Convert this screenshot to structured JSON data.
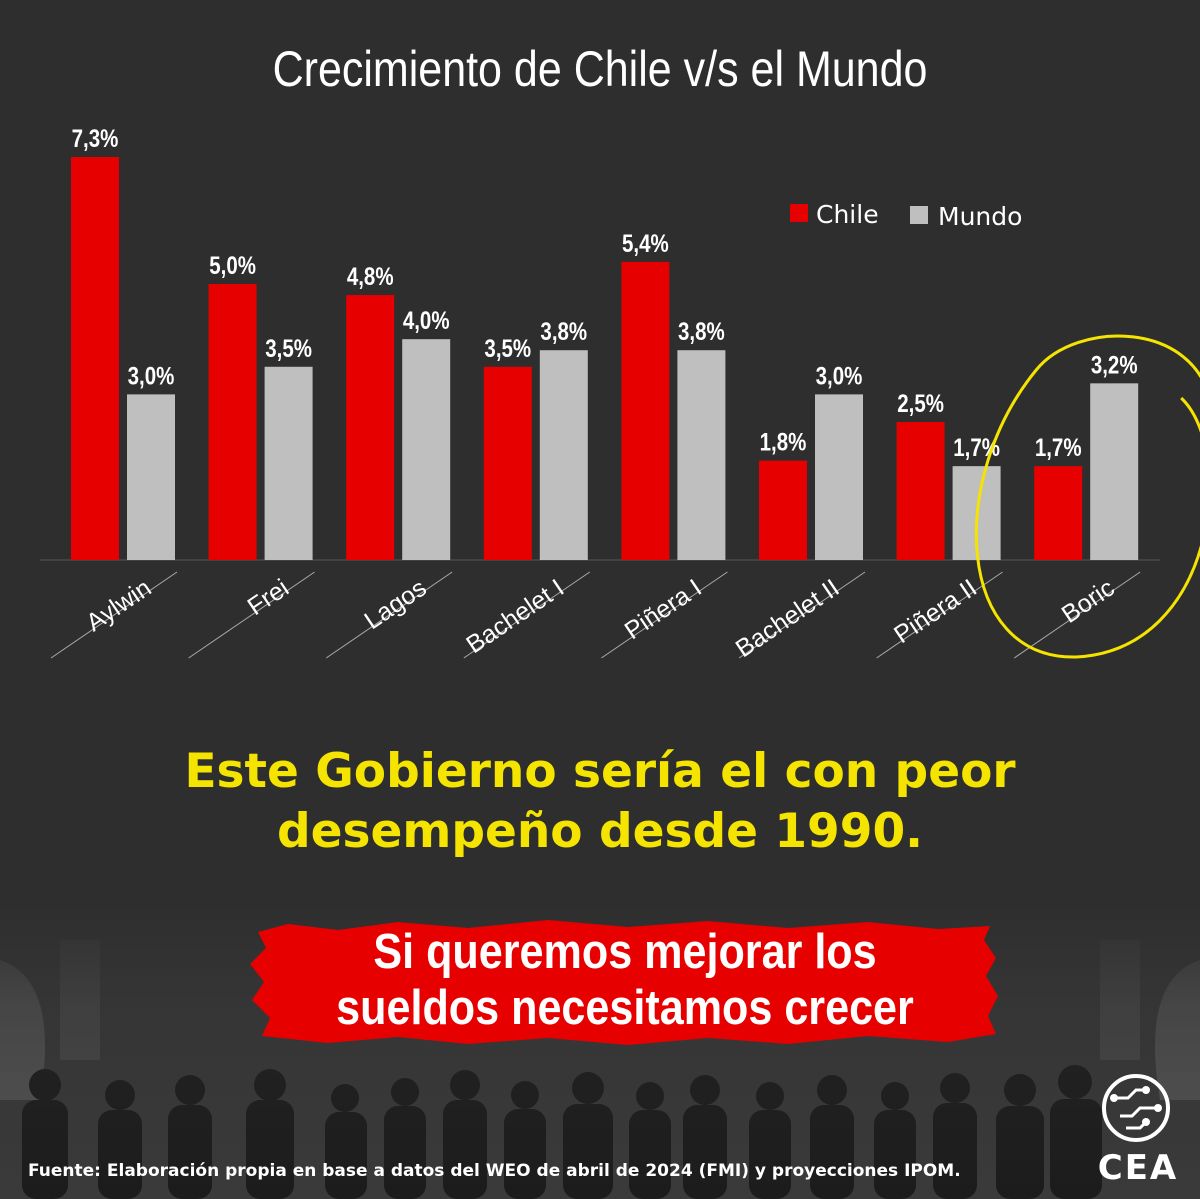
{
  "chart_data": {
    "type": "bar",
    "title": "Crecimiento de Chile v/s el Mundo",
    "categories": [
      "Aylwin",
      "Frei",
      "Lagos",
      "Bachelet I",
      "Piñera I",
      "Bachelet II",
      "Piñera II",
      "Boric"
    ],
    "series": [
      {
        "name": "Chile",
        "color": "#e60000",
        "values": [
          7.3,
          5.0,
          4.8,
          3.5,
          5.4,
          1.8,
          2.5,
          1.7
        ],
        "labels": [
          "7,3%",
          "5,0%",
          "4,8%",
          "3,5%",
          "5,4%",
          "1,8%",
          "2,5%",
          "1,7%"
        ]
      },
      {
        "name": "Mundo",
        "color": "#c0bfbf",
        "values": [
          3.0,
          3.5,
          4.0,
          3.8,
          3.8,
          3.0,
          1.7,
          3.2
        ],
        "labels": [
          "3,0%",
          "3,5%",
          "4,0%",
          "3,8%",
          "3,8%",
          "3,0%",
          "1,7%",
          "3,2%"
        ]
      }
    ],
    "legend_position": "top-right",
    "highlighted_category": "Boric",
    "highlight_color": "#f5e400",
    "xlabel": "",
    "ylabel": "",
    "ylim": [
      0,
      7.3
    ]
  },
  "headline": {
    "line1": "Este Gobierno sería el con peor",
    "line2": "desempeño desde 1990."
  },
  "banner": {
    "line1": "Si queremos mejorar los",
    "line2": "sueldos necesitamos crecer"
  },
  "source": "Fuente: Elaboración propia en base a datos del WEO de abril de 2024 (FMI) y proyecciones IPOM.",
  "logo": {
    "text": "CEA",
    "icon": "circuit-globe-icon"
  }
}
